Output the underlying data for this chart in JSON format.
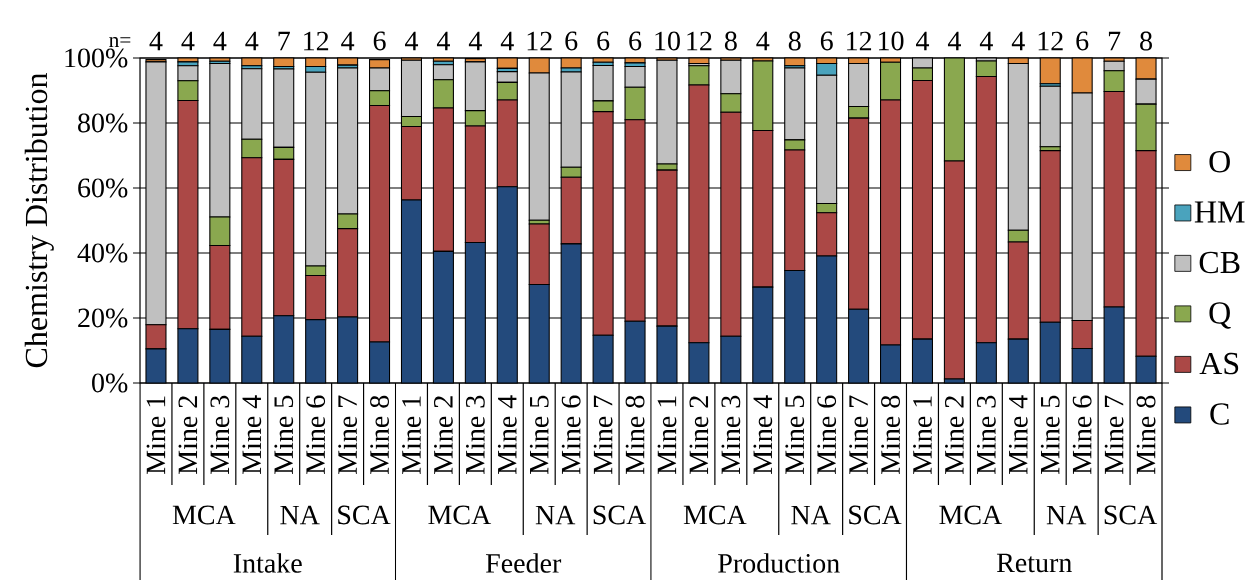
{
  "chart_data": {
    "type": "bar",
    "stacked": true,
    "ylabel": "Chemistry Distribution",
    "categories": [
      "Mine 1",
      "Mine 2",
      "Mine 3",
      "Mine 4",
      "Mine 5",
      "Mine 6",
      "Mine 7",
      "Mine 8",
      "Mine 1",
      "Mine 2",
      "Mine 3",
      "Mine 4",
      "Mine 5",
      "Mine 6",
      "Mine 7",
      "Mine 8",
      "Mine 1",
      "Mine 2",
      "Mine 3",
      "Mine 4",
      "Mine 5",
      "Mine 6",
      "Mine 7",
      "Mine 8",
      "Mine 1",
      "Mine 2",
      "Mine 3",
      "Mine 4",
      "Mine 5",
      "Mine 6",
      "Mine 7",
      "Mine 8"
    ],
    "series": [
      {
        "name": "C",
        "color": "#234a7c",
        "values": [
          10.5,
          16.7,
          16.5,
          14.4,
          20.7,
          19.5,
          20.3,
          12.6,
          56.3,
          40.5,
          43.2,
          60.4,
          30.3,
          42.8,
          14.7,
          19.0,
          17.5,
          12.4,
          14.4,
          29.5,
          34.6,
          39.1,
          22.7,
          11.7,
          13.5,
          1.2,
          12.4,
          13.5,
          18.7,
          10.6,
          23.4,
          8.2
        ]
      },
      {
        "name": "AS",
        "color": "#ab4846",
        "values": [
          7.4,
          70.2,
          25.8,
          54.9,
          48.1,
          13.6,
          27.2,
          72.8,
          22.6,
          44.1,
          35.9,
          26.7,
          18.6,
          20.5,
          68.8,
          62.0,
          48.0,
          79.3,
          68.9,
          48.2,
          37.1,
          13.3,
          58.8,
          75.4,
          79.6,
          67.1,
          81.9,
          29.9,
          52.8,
          8.6,
          66.3,
          63.3
        ]
      },
      {
        "name": "Q",
        "color": "#8aa84f",
        "values": [
          null,
          6.1,
          8.8,
          5.7,
          3.7,
          2.9,
          4.5,
          4.5,
          3.1,
          8.7,
          4.7,
          5.4,
          1.2,
          3.1,
          3.3,
          10.0,
          1.9,
          5.9,
          5.7,
          21.4,
          3.1,
          2.8,
          3.6,
          11.6,
          3.8,
          31.7,
          4.8,
          3.6,
          1.2,
          0,
          6.4,
          14.3
        ]
      },
      {
        "name": "CB",
        "color": "#c0c0c0",
        "values": [
          80.9,
          4.6,
          47.2,
          21.7,
          24.1,
          59.6,
          44.9,
          7.0,
          17.3,
          4.6,
          15.0,
          3.3,
          45.3,
          29.3,
          10.9,
          6.4,
          31.9,
          0.7,
          10.3,
          0,
          22.1,
          39.5,
          13.2,
          0,
          3.1,
          0,
          0.9,
          51.3,
          18.6,
          70.0,
          2.9,
          7.7
        ]
      },
      {
        "name": "HM",
        "color": "#4aa3bd",
        "values": [
          0,
          1.2,
          0.7,
          0.9,
          0.8,
          1.8,
          0.9,
          null,
          0,
          1.1,
          null,
          1.0,
          0,
          1.2,
          1.0,
          1.1,
          0,
          0,
          0,
          0,
          0.7,
          3.6,
          0,
          0,
          0,
          0,
          0,
          0,
          0.8,
          0,
          0,
          0
        ]
      },
      {
        "name": "O",
        "color": "#e08a3c",
        "values": [
          0.7,
          1.2,
          1.0,
          2.4,
          2.6,
          2.6,
          2.2,
          2.6,
          0.7,
          1.0,
          1.0,
          3.2,
          4.6,
          3.1,
          1.3,
          1.5,
          0.7,
          1.7,
          0.7,
          0.9,
          2.4,
          1.7,
          1.7,
          1.3,
          0,
          0,
          0,
          1.7,
          7.9,
          10.8,
          1.0,
          6.5
        ]
      }
    ],
    "ylim": [
      0,
      100
    ],
    "yticks": [
      {
        "value": 0,
        "label": "0%"
      },
      {
        "value": 20,
        "label": "20%"
      },
      {
        "value": 40,
        "label": "40%"
      },
      {
        "value": 60,
        "label": "60%"
      },
      {
        "value": 80,
        "label": "80%"
      },
      {
        "value": 100,
        "label": "100%"
      }
    ],
    "grid": "y",
    "legend": "right",
    "annotations": [
      "n=",
      "4",
      "4",
      "4",
      "4",
      "7",
      "12",
      "4",
      "6",
      "4",
      "4",
      "4",
      "4",
      "12",
      "6",
      "6",
      "6",
      "10",
      "12",
      "8",
      "4",
      "8",
      "6",
      "12",
      "10",
      "4",
      "4",
      "4",
      "4",
      "12",
      "6",
      "7",
      "8",
      "MCA",
      "NA",
      "SCA",
      "MCA",
      "NA",
      "SCA",
      "MCA",
      "NA",
      "SCA",
      "MCA",
      "NA",
      "SCA",
      "Intake",
      "Feeder",
      "Production",
      "Return"
    ]
  }
}
